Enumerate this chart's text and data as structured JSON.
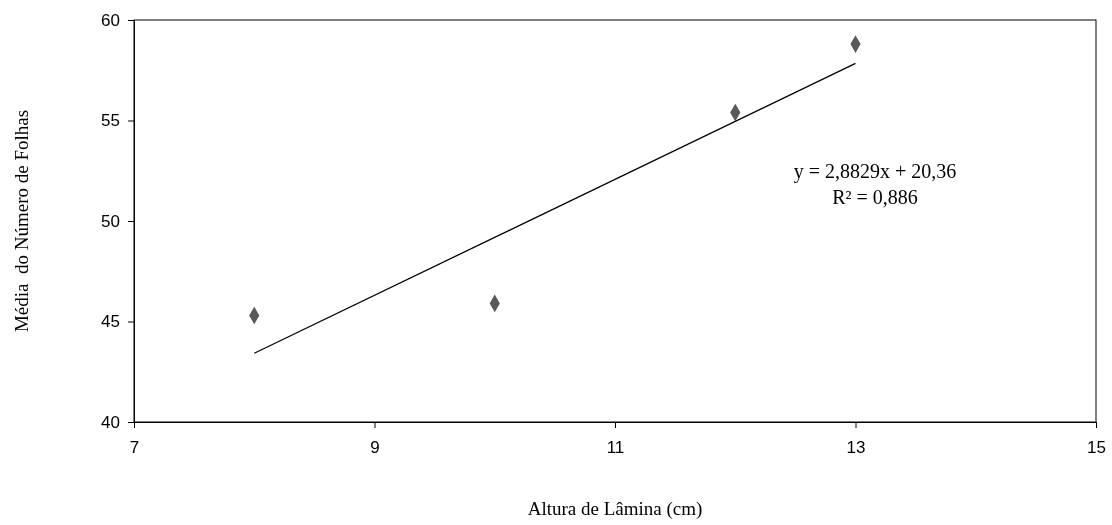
{
  "chart_data": {
    "type": "scatter",
    "xlabel": "Altura de Lâmina (cm)",
    "ylabel": "Média  do Número de Folhas",
    "xlim": [
      7,
      15
    ],
    "xticks": [
      7,
      9,
      11,
      13,
      15
    ],
    "ylim": [
      40,
      60
    ],
    "yticks": [
      40,
      45,
      50,
      55,
      60
    ],
    "grid": false,
    "marker": "diamond",
    "series": [
      {
        "type": "scatter",
        "color": "#595959",
        "x": [
          8,
          10,
          12,
          13
        ],
        "values": [
          45.3,
          45.9,
          55.4,
          58.8
        ]
      },
      {
        "type": "line",
        "color": "#000000",
        "marker": "none",
        "x": [
          8,
          13
        ],
        "values": [
          43.42,
          57.84
        ]
      }
    ],
    "annotations": [
      "y = 2,8829x + 20,36",
      "R² = 0,886"
    ]
  }
}
